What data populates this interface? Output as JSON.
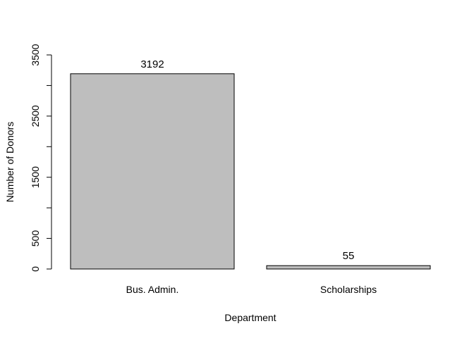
{
  "chart_data": {
    "type": "bar",
    "title": "",
    "xlabel": "Department",
    "ylabel": "Number of Donors",
    "categories": [
      "Bus. Admin.",
      "Scholarships"
    ],
    "values": [
      3192,
      55
    ],
    "data_labels": [
      "3192",
      "55"
    ],
    "ylim": [
      0,
      3500
    ],
    "y_ticks": [
      0,
      500,
      1000,
      1500,
      2000,
      2500,
      3000,
      3500
    ],
    "y_tick_labels": [
      "0",
      "500",
      "",
      "1500",
      "",
      "2500",
      "",
      "3500"
    ],
    "grid": false,
    "legend": "none",
    "bar_color": "#bebebe",
    "bar_border_color": "#000000"
  }
}
